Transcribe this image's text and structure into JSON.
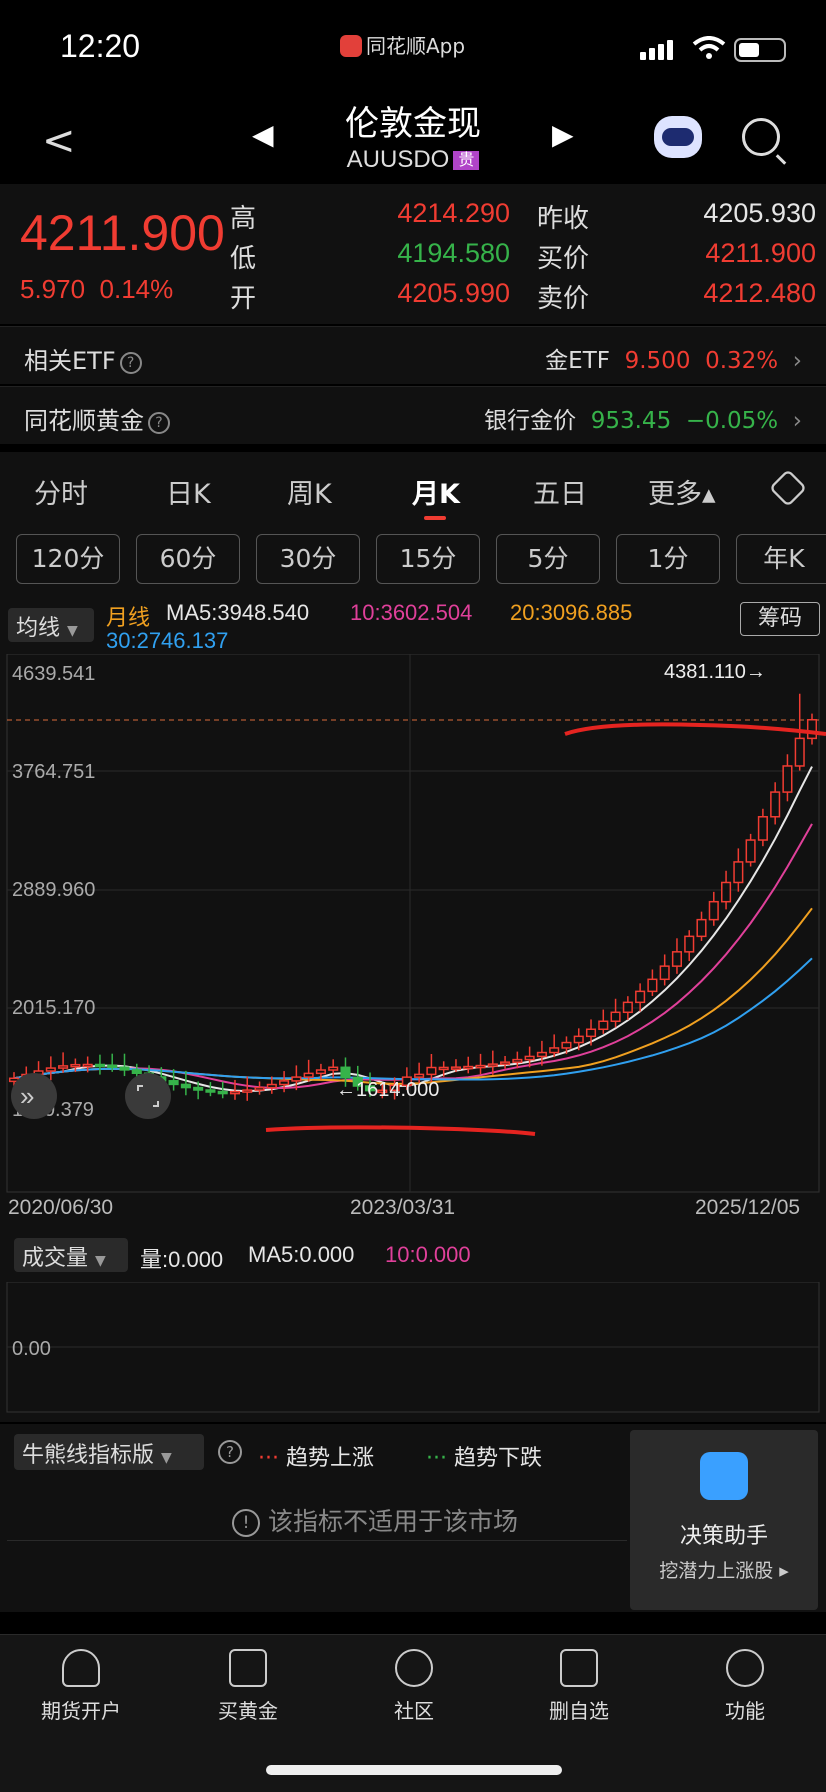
{
  "status": {
    "time": "12:20",
    "app": "同花顺App"
  },
  "header": {
    "title": "伦敦金现",
    "symbol": "AUUSDO",
    "tag": "贵"
  },
  "quote": {
    "price": "4211.900",
    "change": "5.970",
    "change_pct": "0.14%",
    "high_label": "高",
    "high": "4214.290",
    "low_label": "低",
    "low": "4194.580",
    "open_label": "开",
    "open": "4205.990",
    "prev_close_label": "昨收",
    "prev_close": "4205.930",
    "bid_label": "买价",
    "bid": "4211.900",
    "ask_label": "卖价",
    "ask": "4212.480"
  },
  "etf_row": {
    "label": "相关ETF",
    "name": "金ETF",
    "value": "9.500",
    "pct": "0.32%"
  },
  "gold_row": {
    "label": "同花顺黄金",
    "name": "银行金价",
    "value": "953.45",
    "pct": "−0.05%"
  },
  "tabs": [
    "分时",
    "日K",
    "周K",
    "月K",
    "五日",
    "更多▴"
  ],
  "minute_buttons": [
    "120分",
    "60分",
    "30分",
    "15分",
    "5分",
    "1分",
    "年K"
  ],
  "ma": {
    "selector": "均线",
    "period": "月线",
    "ma5": "MA5:3948.540",
    "ma10": "10:3602.504",
    "ma20": "20:3096.885",
    "ma30": "30:2746.137",
    "chips_button": "筹码"
  },
  "chart_labels": {
    "y_ticks": [
      "4639.541",
      "3764.751",
      "2889.960",
      "2015.170",
      "1140.379"
    ],
    "x_ticks": [
      "2020/06/30",
      "2023/03/31",
      "2025/12/05"
    ],
    "high_marker": "4381.110→",
    "low_marker": "←1614.000"
  },
  "chart_data": {
    "type": "candlestick",
    "x_start": "2020/06/30",
    "x_end": "2025/12/05",
    "ylim": [
      1140.379,
      4639.541
    ],
    "max": 4381.11,
    "min": 1614.0,
    "last": 4211.9
  },
  "colors": {
    "up": "#f03c32",
    "down": "#36b34a",
    "ma5": "#e6e6e6",
    "ma10": "#e0409a",
    "ma20": "#f0a020",
    "ma30": "#30a0f0"
  },
  "volume": {
    "selector": "成交量",
    "vol": "量:0.000",
    "ma5": "MA5:0.000",
    "ma10": "10:0.000",
    "y_tick": "0.00"
  },
  "indicator": {
    "selector": "牛熊线指标版",
    "up_label": "趋势上涨",
    "down_label": "趋势下跌",
    "notice": "该指标不适用于该市场",
    "assistant_title": "决策助手",
    "assistant_sub": "挖潜力上涨股 ▸"
  },
  "bottom_nav": [
    "期货开户",
    "买黄金",
    "社区",
    "删自选",
    "功能"
  ]
}
